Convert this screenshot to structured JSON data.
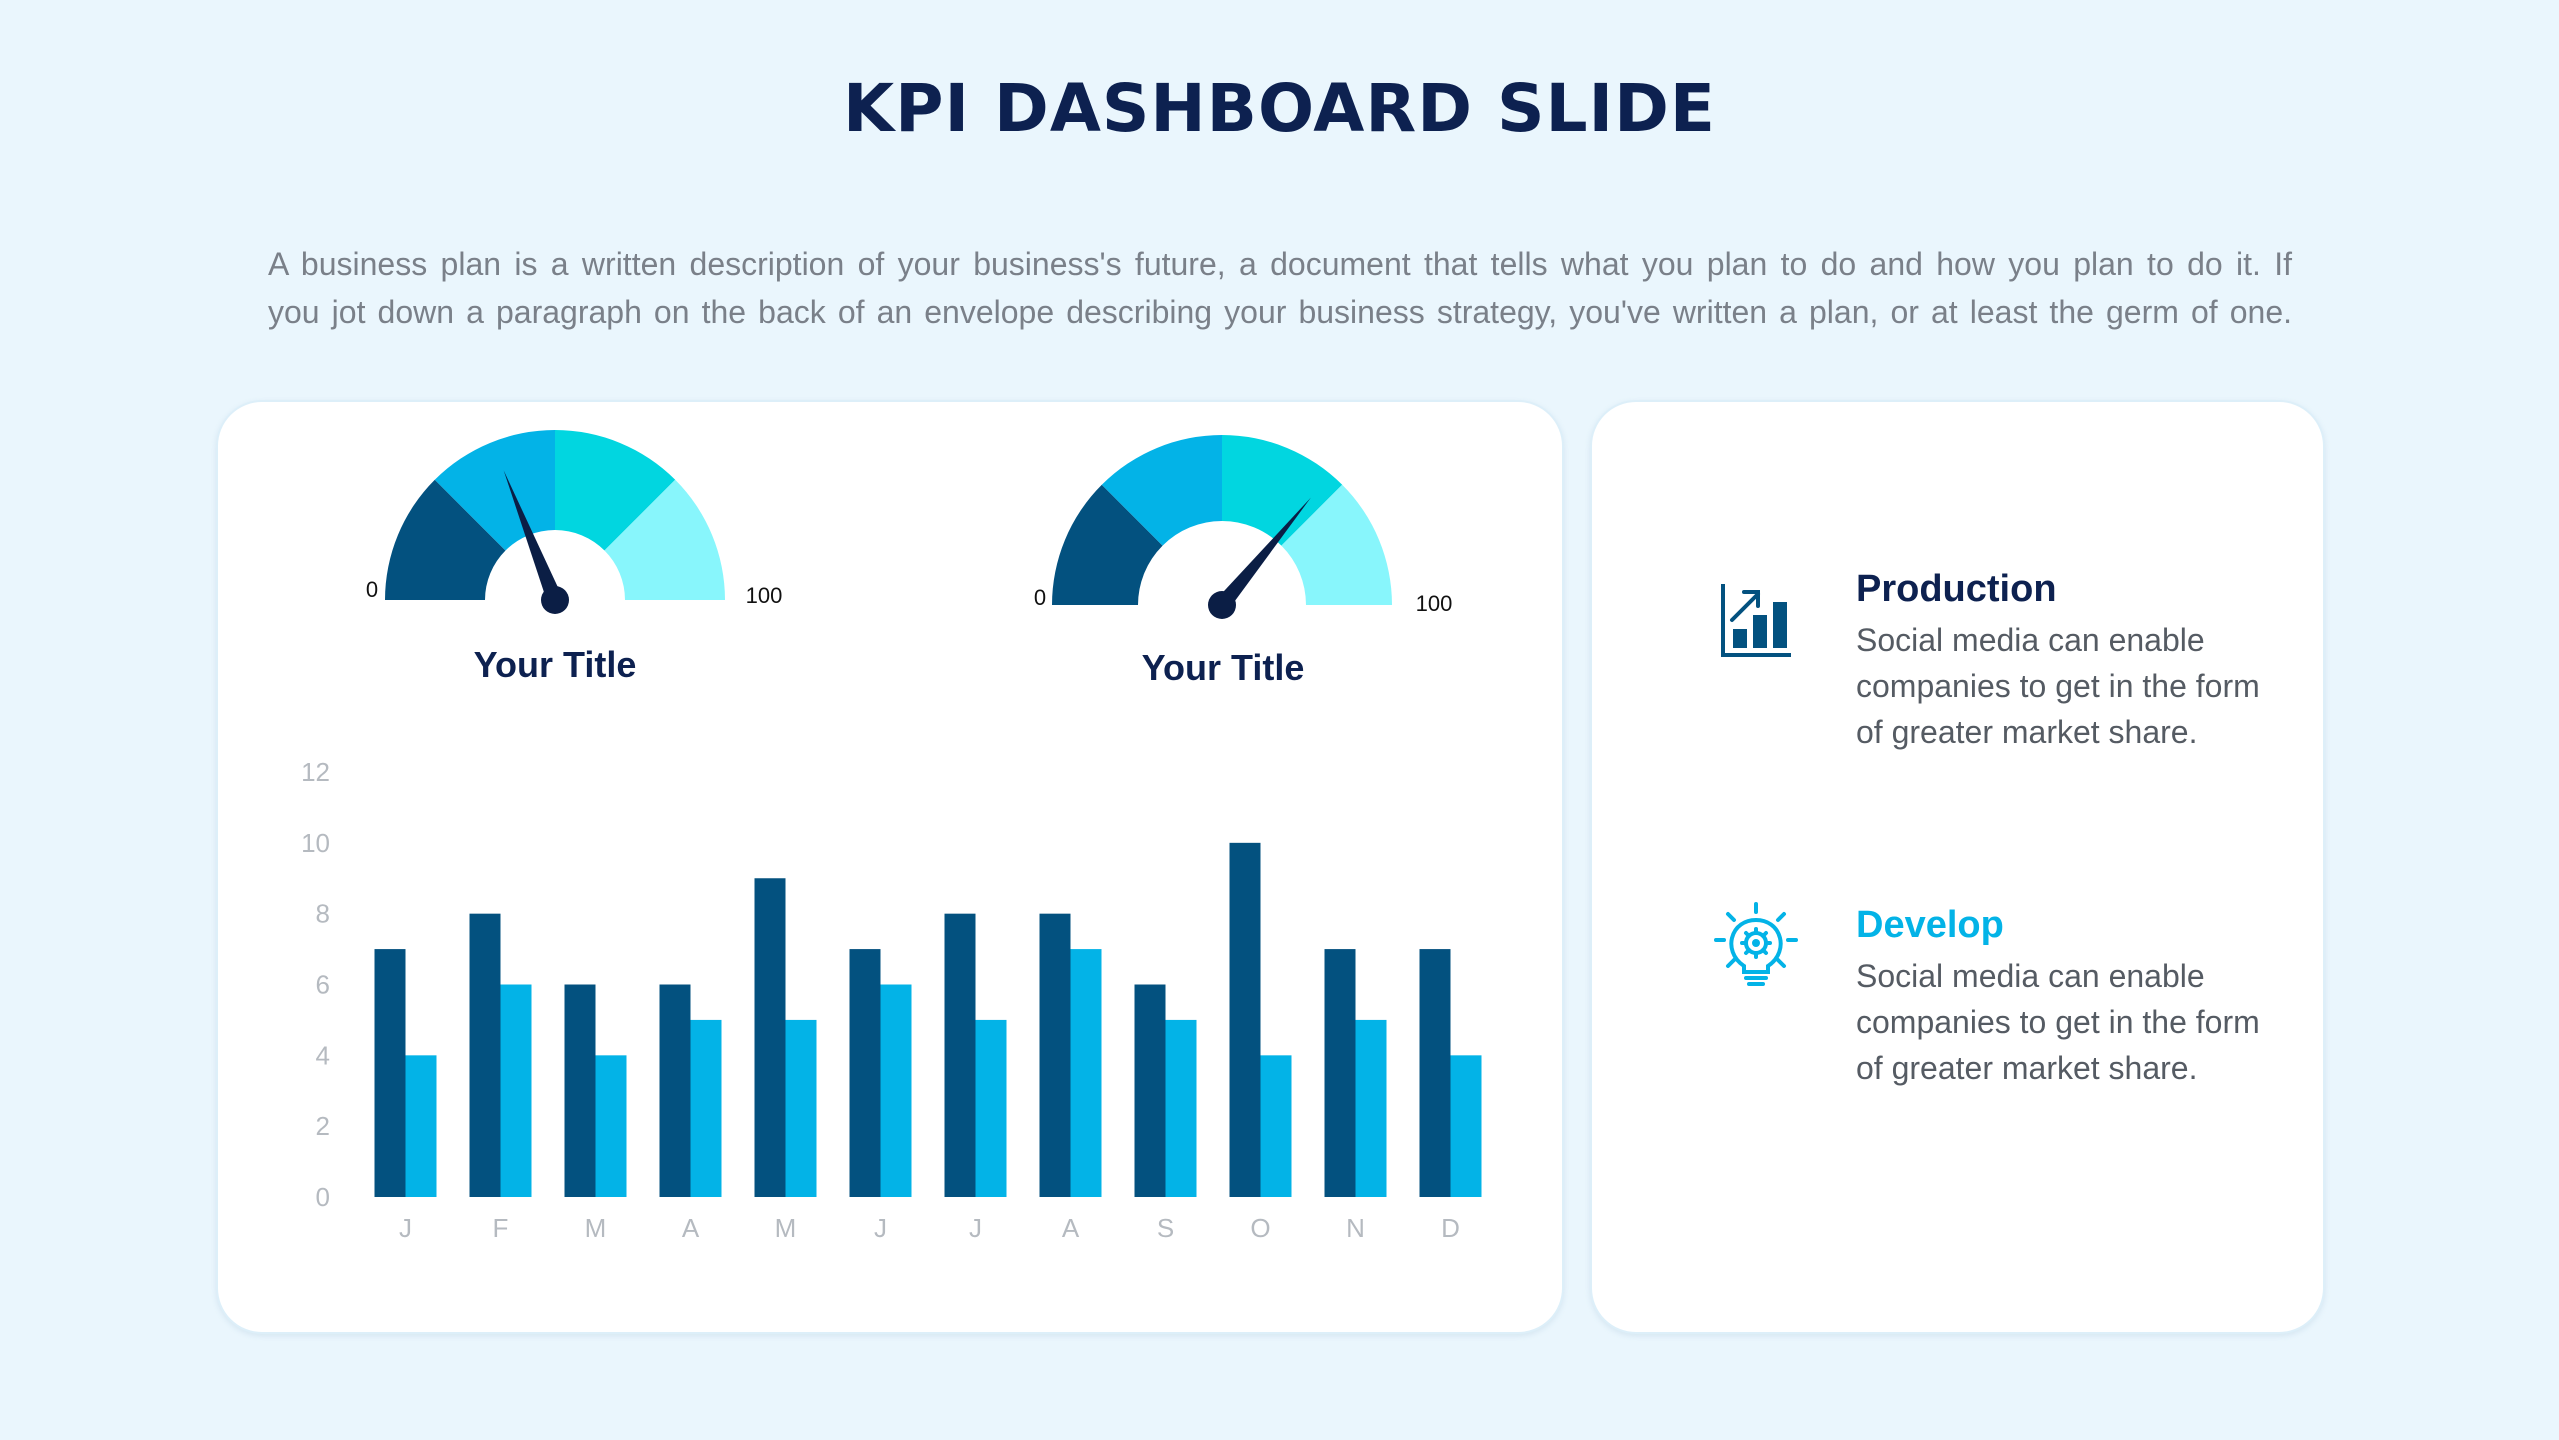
{
  "slide": {
    "title": "KPI DASHBOARD SLIDE",
    "description_lines": [
      "A business plan is a written description of your business's future, a document that tells what you plan to do and how you plan to do it. If",
      "you jot down a paragraph on the back of an envelope describing your business strategy, you've written a plan, or at least the germ of one."
    ]
  },
  "gauges": [
    {
      "title": "Your Title",
      "min_label": "0",
      "max_label": "100",
      "value": 38,
      "colors": [
        "#03517F",
        "#03B3E7",
        "#01D6E0",
        "#88F6FC"
      ],
      "needle_color": "#0B1E45"
    },
    {
      "title": "Your Title",
      "min_label": "0",
      "max_label": "100",
      "value": 72,
      "colors": [
        "#03517F",
        "#03B3E7",
        "#01D6E0",
        "#88F6FC"
      ],
      "needle_color": "#0B1E45"
    }
  ],
  "chart_data": {
    "type": "bar",
    "categories": [
      "J",
      "F",
      "M",
      "A",
      "M",
      "J",
      "J",
      "A",
      "S",
      "O",
      "N",
      "D"
    ],
    "series": [
      {
        "values": [
          7,
          8,
          6,
          6,
          9,
          7,
          8,
          8,
          6,
          10,
          7,
          7
        ],
        "color": "#03517F"
      },
      {
        "values": [
          4,
          6,
          4,
          5,
          5,
          6,
          5,
          7,
          5,
          4,
          5,
          4
        ],
        "color": "#03B3E7"
      }
    ],
    "ylim": [
      0,
      12
    ],
    "yticks": [
      0,
      2,
      4,
      6,
      8,
      10,
      12
    ],
    "grid": false,
    "axis_label_color": "#B5BAC0"
  },
  "info": [
    {
      "icon": "bar-chart-growth-icon",
      "title": "Production",
      "title_color": "#0D2150",
      "icon_color": "#03517F",
      "text_lines": [
        "Social media can enable",
        "companies to get in the form",
        "of greater market share."
      ]
    },
    {
      "icon": "lightbulb-gear-icon",
      "title": "Develop",
      "title_color": "#03B3E7",
      "icon_color": "#03B3E7",
      "text_lines": [
        "Social media can enable",
        "companies to get in the form",
        "of greater market share."
      ]
    }
  ]
}
